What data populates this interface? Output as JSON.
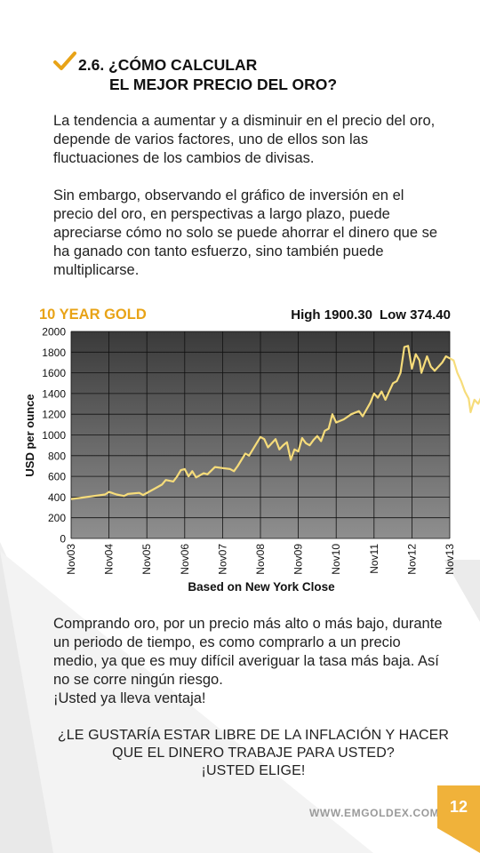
{
  "heading": {
    "line1": "2.6. ¿CÓMO CALCULAR",
    "line2": "EL MEJOR PRECIO DEL ORO?"
  },
  "paragraphs": {
    "p1": "La tendencia a aumentar y a disminuir en el precio del oro,\ndepende de varios factores, uno de ellos son las\nfluctuaciones de los cambios de divisas.",
    "p2": "Sin embargo, observando el gráfico de inversión en el\nprecio del oro, en perspectivas a largo plazo, puede\napreciarse cómo no solo se puede ahorrar el dinero que se\nha ganado con tanto esfuerzo, sino también puede\nmultiplicarse.",
    "p3": "Comprando oro, por un precio más alto o más bajo, durante\nun periodo de tiempo, es como comprarlo a un precio\nmedio, ya que es muy difícil averiguar la tasa más baja. Así\nno se corre ningún riesgo.\n¡Usted ya lleva ventaja!"
  },
  "cta": "¿LE GUSTARÍA ESTAR LIBRE DE LA INFLACIÓN Y HACER\nQUE EL DINERO TRABAJE PARA USTED?\n¡USTED ELIGE!",
  "footer": {
    "url": "WWW.EMGOLDEX.COM",
    "page_number": "12"
  },
  "colors": {
    "accent": "#f0b23a",
    "line": "#f6dc7a"
  },
  "icons": {
    "heading_mark": "checkmark-icon"
  },
  "chart_data": {
    "type": "line",
    "title": "10 YEAR GOLD",
    "high_label": "High 1900.30",
    "low_label": "Low 374.40",
    "ylabel": "USD per ounce",
    "xlabel": "Based on New York Close",
    "ylim": [
      0,
      2000
    ],
    "yticks": [
      "0",
      "200",
      "400",
      "600",
      "800",
      "1000",
      "1200",
      "1400",
      "1600",
      "1800",
      "2000"
    ],
    "xticks": [
      "Nov03",
      "Nov04",
      "Nov05",
      "Nov06",
      "Nov07",
      "Nov08",
      "Nov09",
      "Nov10",
      "Nov11",
      "Nov12",
      "Nov13"
    ],
    "grid": true,
    "background": "dark gradient",
    "series": [
      {
        "values": [
          [
            0,
            380
          ],
          [
            0.3,
            395
          ],
          [
            0.6,
            410
          ],
          [
            0.9,
            425
          ],
          [
            1.0,
            450
          ],
          [
            1.2,
            425
          ],
          [
            1.4,
            410
          ],
          [
            1.5,
            430
          ],
          [
            1.8,
            440
          ],
          [
            1.9,
            420
          ],
          [
            2.2,
            480
          ],
          [
            2.4,
            520
          ],
          [
            2.5,
            565
          ],
          [
            2.7,
            550
          ],
          [
            2.8,
            600
          ],
          [
            2.9,
            660
          ],
          [
            3.0,
            670
          ],
          [
            3.1,
            600
          ],
          [
            3.2,
            650
          ],
          [
            3.3,
            590
          ],
          [
            3.5,
            630
          ],
          [
            3.6,
            620
          ],
          [
            3.8,
            690
          ],
          [
            4.0,
            680
          ],
          [
            4.2,
            670
          ],
          [
            4.3,
            650
          ],
          [
            4.4,
            700
          ],
          [
            4.6,
            820
          ],
          [
            4.7,
            800
          ],
          [
            4.9,
            920
          ],
          [
            5.0,
            980
          ],
          [
            5.1,
            960
          ],
          [
            5.2,
            880
          ],
          [
            5.3,
            920
          ],
          [
            5.4,
            960
          ],
          [
            5.5,
            860
          ],
          [
            5.6,
            900
          ],
          [
            5.7,
            930
          ],
          [
            5.8,
            760
          ],
          [
            5.9,
            860
          ],
          [
            6.0,
            840
          ],
          [
            6.1,
            970
          ],
          [
            6.2,
            920
          ],
          [
            6.3,
            900
          ],
          [
            6.4,
            950
          ],
          [
            6.5,
            990
          ],
          [
            6.6,
            940
          ],
          [
            6.7,
            1040
          ],
          [
            6.8,
            1060
          ],
          [
            6.9,
            1200
          ],
          [
            7.0,
            1120
          ],
          [
            7.2,
            1150
          ],
          [
            7.4,
            1200
          ],
          [
            7.6,
            1230
          ],
          [
            7.7,
            1180
          ],
          [
            7.9,
            1310
          ],
          [
            8.0,
            1400
          ],
          [
            8.1,
            1360
          ],
          [
            8.2,
            1420
          ],
          [
            8.3,
            1340
          ],
          [
            8.4,
            1420
          ],
          [
            8.5,
            1500
          ],
          [
            8.6,
            1520
          ],
          [
            8.7,
            1600
          ],
          [
            8.8,
            1850
          ],
          [
            8.9,
            1860
          ],
          [
            9.0,
            1640
          ],
          [
            9.1,
            1780
          ],
          [
            9.2,
            1720
          ],
          [
            9.25,
            1600
          ],
          [
            9.4,
            1760
          ],
          [
            9.5,
            1660
          ],
          [
            9.6,
            1620
          ],
          [
            9.8,
            1700
          ],
          [
            9.9,
            1760
          ],
          [
            10.0,
            1740
          ],
          [
            10.1,
            1720
          ],
          [
            10.2,
            1600
          ],
          [
            10.3,
            1520
          ],
          [
            10.4,
            1420
          ],
          [
            10.5,
            1350
          ],
          [
            10.55,
            1220
          ],
          [
            10.65,
            1340
          ],
          [
            10.75,
            1300
          ],
          [
            10.85,
            1380
          ],
          [
            10.9,
            1390
          ],
          [
            10.95,
            1280
          ],
          [
            11.0,
            1320
          ],
          [
            11.1,
            1460
          ],
          [
            11.2,
            1500
          ]
        ]
      }
    ]
  }
}
